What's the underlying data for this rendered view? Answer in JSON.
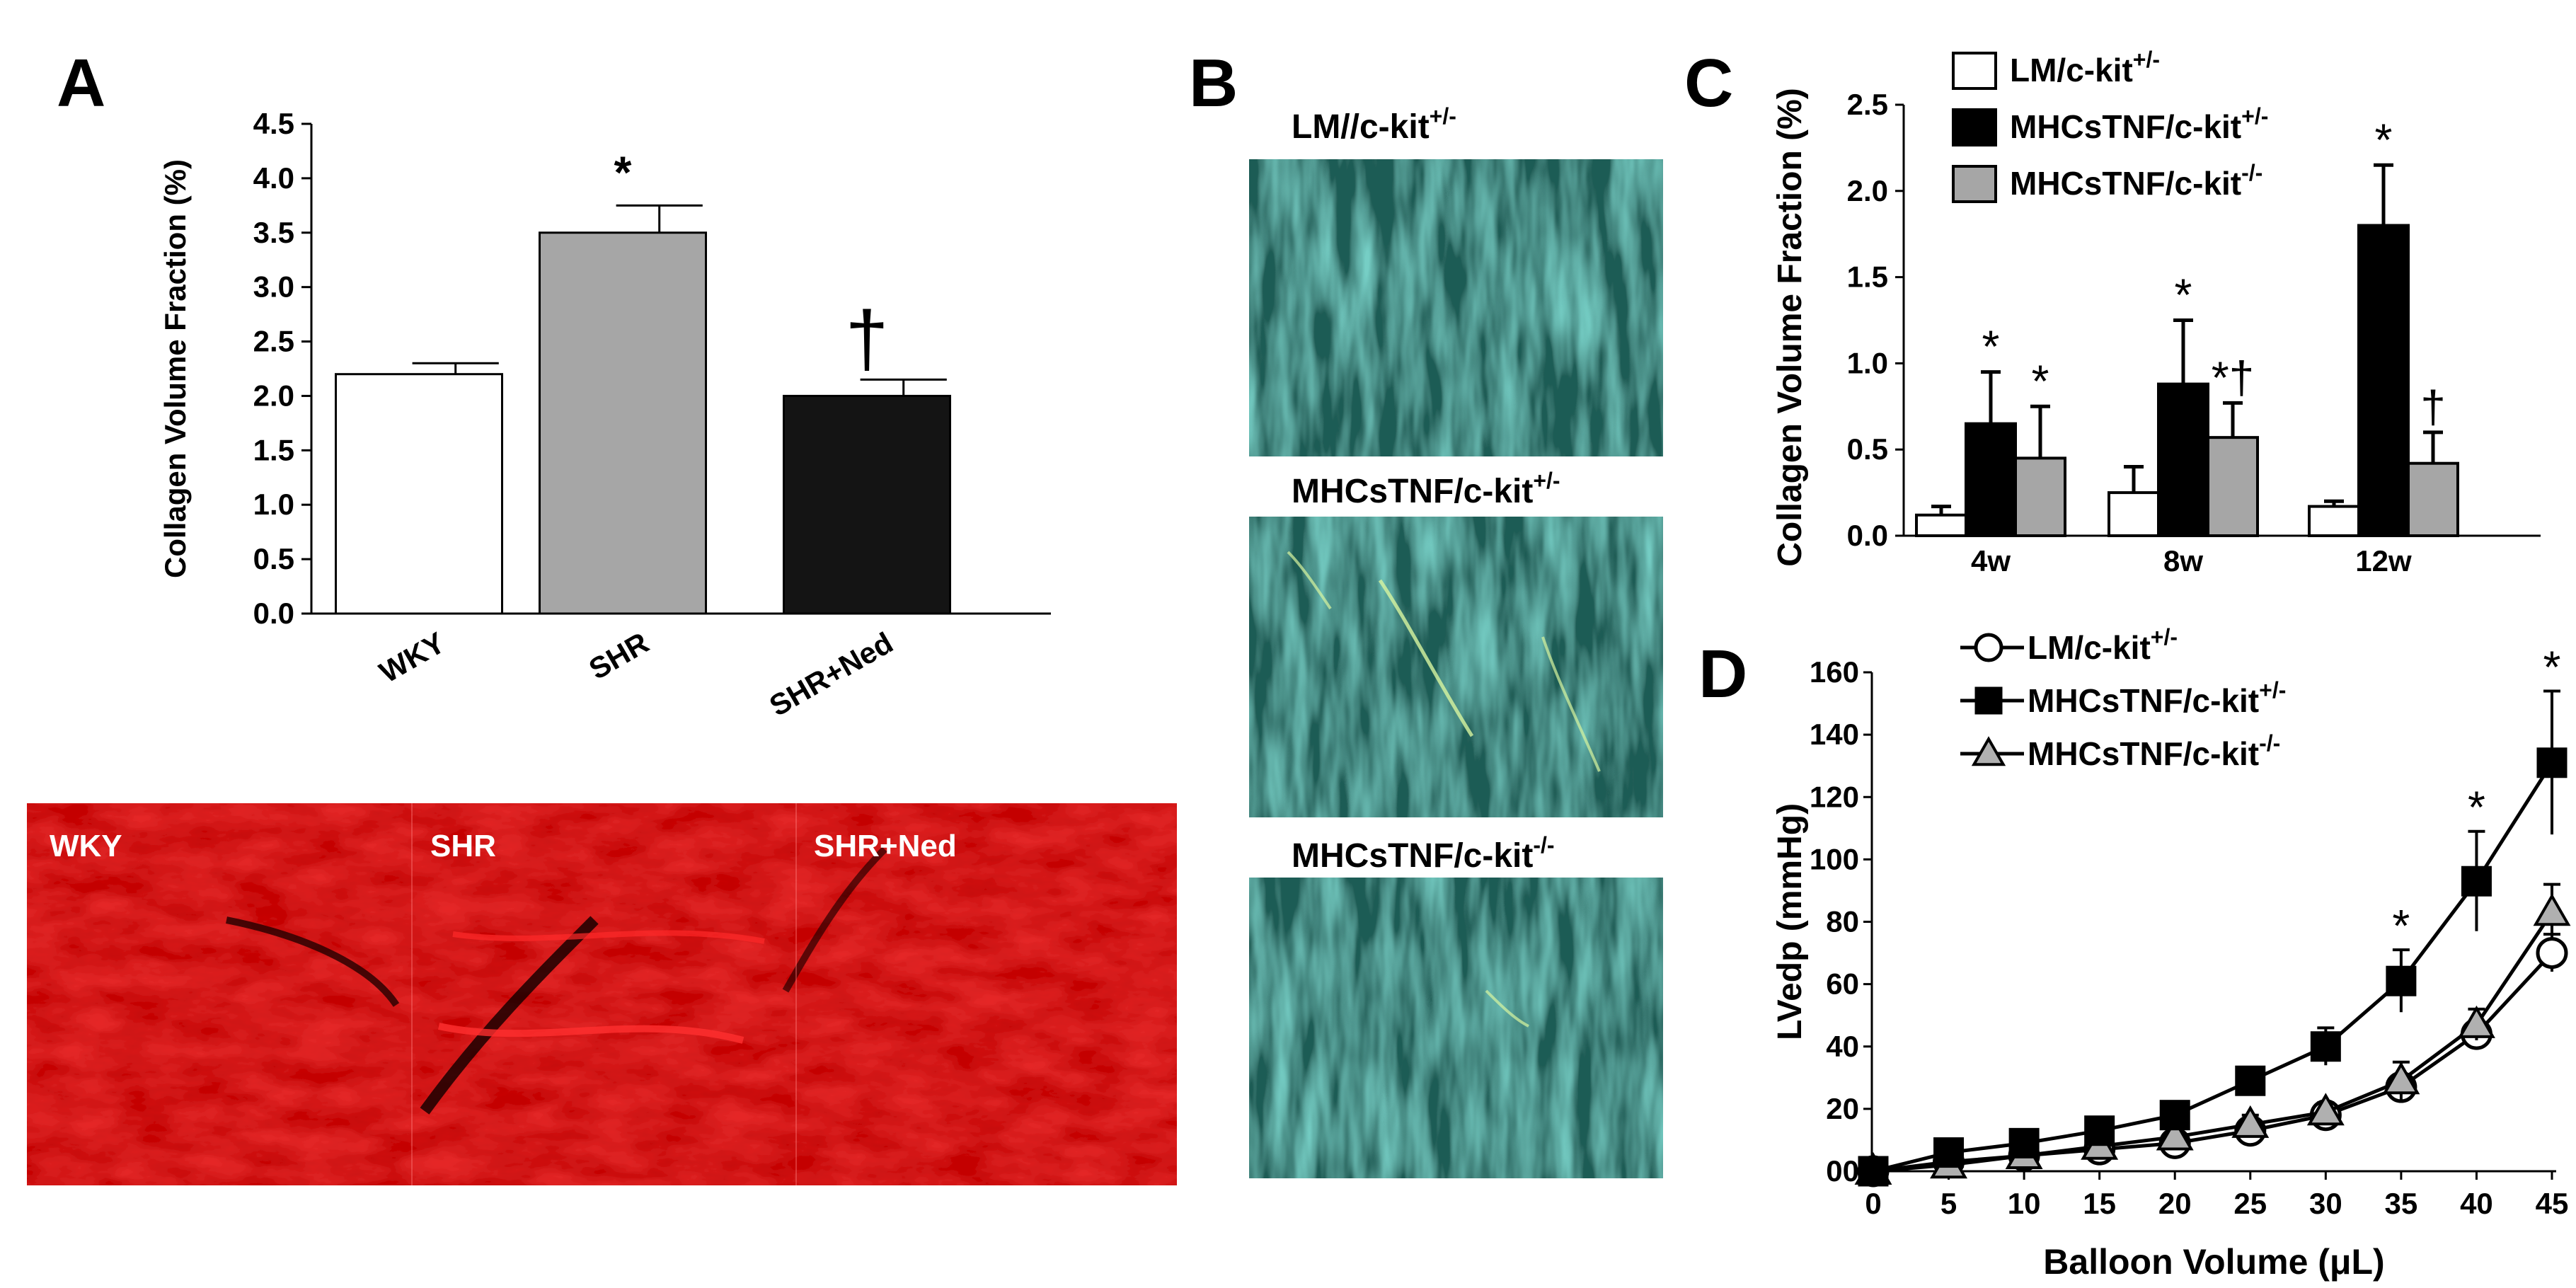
{
  "panels": {
    "A": {
      "letter": "A",
      "micro_labels": [
        "WKY",
        "SHR",
        "SHR+Ned"
      ]
    },
    "B": {
      "letter": "B",
      "image_labels": [
        {
          "prefix": "LM//c-kit",
          "sup": "+/-"
        },
        {
          "prefix": "MHCsTNF/c-kit",
          "sup": "+/-"
        },
        {
          "prefix": "MHCsTNF/c-kit",
          "sup": "-/-"
        }
      ]
    },
    "C": {
      "letter": "C"
    },
    "D": {
      "letter": "D"
    }
  },
  "chart_data": [
    {
      "panel": "A",
      "type": "bar",
      "ylabel": "Collagen Volume Fraction (%)",
      "ylim": [
        0,
        4.5
      ],
      "yticks": [
        "0.0",
        "0.5",
        "1.0",
        "1.5",
        "2.0",
        "2.5",
        "3.0",
        "3.5",
        "4.0",
        "4.5"
      ],
      "categories": [
        "WKY",
        "SHR",
        "SHR+Ned"
      ],
      "values": [
        2.2,
        3.5,
        2.0
      ],
      "errors": [
        0.1,
        0.25,
        0.15
      ],
      "bar_colors": [
        "#ffffff",
        "#a6a6a6",
        "#141414"
      ],
      "annotations": [
        "",
        "*",
        "†"
      ]
    },
    {
      "panel": "C",
      "type": "bar",
      "ylabel": "Collagen Volume Fraction (%)",
      "ylim": [
        0,
        2.5
      ],
      "yticks": [
        "0.0",
        "0.5",
        "1.0",
        "1.5",
        "2.0",
        "2.5"
      ],
      "categories": [
        "4w",
        "8w",
        "12w"
      ],
      "series": [
        {
          "name": "LM/c-kit",
          "sup": "+/-",
          "color": "#ffffff",
          "values": [
            0.12,
            0.25,
            0.17
          ],
          "errors": [
            0.05,
            0.15,
            0.03
          ],
          "annotations": [
            "",
            "",
            ""
          ]
        },
        {
          "name": "MHCsTNF/c-kit",
          "sup": "+/-",
          "color": "#000000",
          "values": [
            0.65,
            0.88,
            1.8
          ],
          "errors": [
            0.3,
            0.37,
            0.35
          ],
          "annotations": [
            "*",
            "*",
            "*"
          ]
        },
        {
          "name": "MHCsTNF/c-kit",
          "sup": "-/-",
          "color": "#a6a6a6",
          "values": [
            0.45,
            0.57,
            0.42
          ],
          "errors": [
            0.3,
            0.2,
            0.18
          ],
          "annotations": [
            "*",
            "*†",
            "†"
          ]
        }
      ]
    },
    {
      "panel": "D",
      "type": "line",
      "xlabel": "Balloon Volume (μL)",
      "ylabel": "LVedp (mmHg)",
      "xlim": [
        0,
        45
      ],
      "ylim": [
        0,
        160
      ],
      "xticks": [
        "0",
        "5",
        "10",
        "15",
        "20",
        "25",
        "30",
        "35",
        "40",
        "45"
      ],
      "yticks": [
        "00",
        "20",
        "40",
        "60",
        "80",
        "100",
        "120",
        "140",
        "160"
      ],
      "x": [
        0,
        5,
        10,
        15,
        20,
        25,
        30,
        35,
        40,
        45
      ],
      "series": [
        {
          "name": "LM/c-kit",
          "sup": "+/-",
          "marker": "circle",
          "values": [
            0,
            3,
            5,
            7,
            9,
            13,
            18,
            27,
            44,
            70
          ],
          "errors": [
            1,
            1,
            2,
            2,
            2,
            3,
            3,
            3,
            4,
            6
          ]
        },
        {
          "name": "MHCsTNF/c-kit",
          "sup": "+/-",
          "marker": "square",
          "values": [
            0,
            6,
            9,
            13,
            18,
            29,
            40,
            61,
            93,
            131
          ],
          "errors": [
            1,
            2,
            2,
            3,
            3,
            4,
            6,
            10,
            16,
            23
          ]
        },
        {
          "name": "MHCsTNF/c-kit",
          "sup": "-/-",
          "marker": "triangle",
          "values": [
            0,
            2,
            5,
            8,
            11,
            15,
            19,
            29,
            47,
            83
          ],
          "errors": [
            1,
            1,
            2,
            2,
            2,
            3,
            3,
            6,
            5,
            9
          ]
        }
      ],
      "annotations": [
        {
          "x": 35,
          "text": "*"
        },
        {
          "x": 40,
          "text": "*"
        },
        {
          "x": 45,
          "text": "*"
        }
      ]
    }
  ]
}
